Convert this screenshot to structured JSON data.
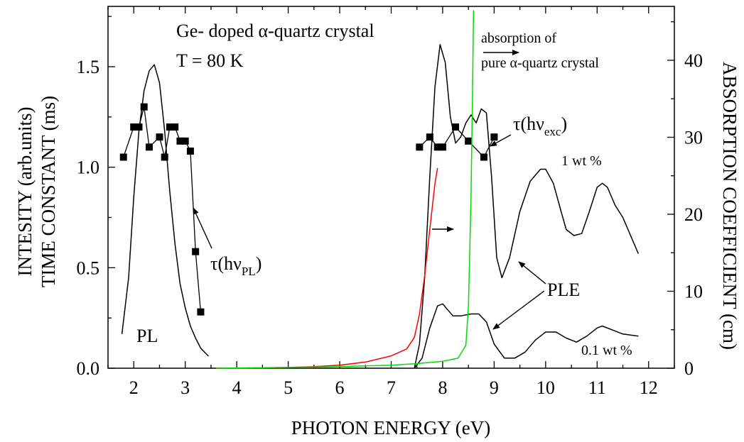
{
  "chart_data": {
    "type": "line",
    "xlabel": "PHOTON ENERGY (eV)",
    "ylabel_left": [
      "INTESITY (arb.units)",
      "TIME CONSTANT (ms)"
    ],
    "ylabel_right": "ABSORPTION COEFFICIENT (cm)",
    "xlim": [
      1.5,
      12.5
    ],
    "ylim_left": [
      0,
      1.8
    ],
    "ylim_right": [
      0,
      47
    ],
    "x_ticks": [
      "2",
      "3",
      "4",
      "5",
      "6",
      "7",
      "8",
      "9",
      "10",
      "11",
      "12"
    ],
    "y_ticks_left": [
      "0.0",
      "0.5",
      "1.0",
      "1.5"
    ],
    "y_ticks_right": [
      "0",
      "10",
      "20",
      "30",
      "40"
    ],
    "colors": {
      "pl": "#000000",
      "ple": "#000000",
      "tau": "#000000",
      "red_absorption": "#ff0000",
      "green_absorption": "#00dd00"
    },
    "annotations": {
      "title_line1": "Ge- doped α-quartz crystal",
      "title_line2": "T = 80 K",
      "pl": "PL",
      "tau": "τ(hν",
      "tau_pl_sub": "PL",
      "tau_exc_sub": "exc",
      "close_paren": ")",
      "ple": "PLE",
      "wt1": "1 wt %",
      "wt01": "0.1 wt %",
      "abs_line1": "absorption of",
      "abs_line2": "pure α-quartz crystal"
    },
    "series": [
      {
        "id": "pl",
        "axis": "left",
        "points": [
          [
            1.77,
            0.17
          ],
          [
            1.9,
            0.45
          ],
          [
            2.0,
            0.85
          ],
          [
            2.1,
            1.18
          ],
          [
            2.2,
            1.38
          ],
          [
            2.3,
            1.48
          ],
          [
            2.4,
            1.51
          ],
          [
            2.5,
            1.42
          ],
          [
            2.6,
            1.18
          ],
          [
            2.7,
            0.88
          ],
          [
            2.8,
            0.62
          ],
          [
            2.9,
            0.42
          ],
          [
            3.0,
            0.3
          ],
          [
            3.1,
            0.21
          ],
          [
            3.2,
            0.15
          ],
          [
            3.3,
            0.1
          ],
          [
            3.45,
            0.06
          ]
        ]
      },
      {
        "id": "tau_pl",
        "axis": "left",
        "markers": true,
        "points": [
          [
            1.8,
            1.05
          ],
          [
            2.0,
            1.2
          ],
          [
            2.1,
            1.2
          ],
          [
            2.2,
            1.3
          ],
          [
            2.3,
            1.1
          ],
          [
            2.5,
            1.15
          ],
          [
            2.6,
            1.05
          ],
          [
            2.7,
            1.2
          ],
          [
            2.8,
            1.2
          ],
          [
            2.9,
            1.13
          ],
          [
            3.0,
            1.13
          ],
          [
            3.1,
            1.08
          ],
          [
            3.2,
            0.58
          ],
          [
            3.3,
            0.28
          ]
        ]
      },
      {
        "id": "ple_1wt",
        "axis": "left",
        "points": [
          [
            7.45,
            0.0
          ],
          [
            7.55,
            0.12
          ],
          [
            7.65,
            0.45
          ],
          [
            7.75,
            0.95
          ],
          [
            7.85,
            1.4
          ],
          [
            7.95,
            1.61
          ],
          [
            8.05,
            1.52
          ],
          [
            8.15,
            1.25
          ],
          [
            8.25,
            1.12
          ],
          [
            8.35,
            1.15
          ],
          [
            8.45,
            1.22
          ],
          [
            8.55,
            1.26
          ],
          [
            8.65,
            1.22
          ],
          [
            8.75,
            1.29
          ],
          [
            8.85,
            1.27
          ],
          [
            8.95,
            0.95
          ],
          [
            9.05,
            0.55
          ],
          [
            9.15,
            0.45
          ],
          [
            9.3,
            0.55
          ],
          [
            9.5,
            0.78
          ],
          [
            9.7,
            0.93
          ],
          [
            9.9,
            0.99
          ],
          [
            10.0,
            0.99
          ],
          [
            10.15,
            0.92
          ],
          [
            10.3,
            0.78
          ],
          [
            10.4,
            0.69
          ],
          [
            10.55,
            0.66
          ],
          [
            10.7,
            0.67
          ],
          [
            10.85,
            0.78
          ],
          [
            11.0,
            0.9
          ],
          [
            11.1,
            0.92
          ],
          [
            11.2,
            0.9
          ],
          [
            11.35,
            0.81
          ],
          [
            11.5,
            0.75
          ],
          [
            11.65,
            0.66
          ],
          [
            11.8,
            0.57
          ]
        ]
      },
      {
        "id": "ple_01wt",
        "axis": "left",
        "points": [
          [
            7.45,
            0.0
          ],
          [
            7.6,
            0.05
          ],
          [
            7.75,
            0.2
          ],
          [
            7.9,
            0.31
          ],
          [
            8.0,
            0.32
          ],
          [
            8.1,
            0.29
          ],
          [
            8.2,
            0.26
          ],
          [
            8.35,
            0.26
          ],
          [
            8.55,
            0.27
          ],
          [
            8.7,
            0.27
          ],
          [
            8.85,
            0.23
          ],
          [
            9.0,
            0.12
          ],
          [
            9.2,
            0.05
          ],
          [
            9.4,
            0.05
          ],
          [
            9.6,
            0.08
          ],
          [
            9.8,
            0.14
          ],
          [
            10.0,
            0.18
          ],
          [
            10.2,
            0.18
          ],
          [
            10.4,
            0.15
          ],
          [
            10.6,
            0.13
          ],
          [
            10.8,
            0.16
          ],
          [
            11.0,
            0.2
          ],
          [
            11.1,
            0.21
          ],
          [
            11.3,
            0.19
          ],
          [
            11.5,
            0.17
          ],
          [
            11.8,
            0.16
          ]
        ]
      },
      {
        "id": "tau_exc",
        "axis": "left",
        "markers": true,
        "points": [
          [
            7.55,
            1.1
          ],
          [
            7.75,
            1.15
          ],
          [
            7.9,
            1.1
          ],
          [
            8.0,
            1.1
          ],
          [
            8.25,
            1.2
          ],
          [
            8.5,
            1.13
          ],
          [
            8.8,
            1.05
          ],
          [
            9.0,
            1.15
          ]
        ]
      },
      {
        "id": "absorption_red",
        "axis": "right",
        "points": [
          [
            3.6,
            0.0
          ],
          [
            4.5,
            0.05
          ],
          [
            5.0,
            0.1
          ],
          [
            5.5,
            0.2
          ],
          [
            6.0,
            0.4
          ],
          [
            6.5,
            0.8
          ],
          [
            7.0,
            1.6
          ],
          [
            7.3,
            2.5
          ],
          [
            7.45,
            4.0
          ],
          [
            7.55,
            7.0
          ],
          [
            7.65,
            12.0
          ],
          [
            7.75,
            18.0
          ],
          [
            7.85,
            24.0
          ],
          [
            7.9,
            26.0
          ]
        ]
      },
      {
        "id": "absorption_green_pure",
        "axis": "right",
        "points": [
          [
            3.6,
            0.0
          ],
          [
            5.0,
            0.1
          ],
          [
            6.0,
            0.2
          ],
          [
            7.0,
            0.4
          ],
          [
            7.5,
            0.6
          ],
          [
            8.0,
            0.9
          ],
          [
            8.3,
            1.3
          ],
          [
            8.45,
            3.0
          ],
          [
            8.5,
            8.0
          ],
          [
            8.55,
            22.0
          ],
          [
            8.58,
            36.0
          ],
          [
            8.6,
            46.5
          ]
        ]
      }
    ]
  }
}
